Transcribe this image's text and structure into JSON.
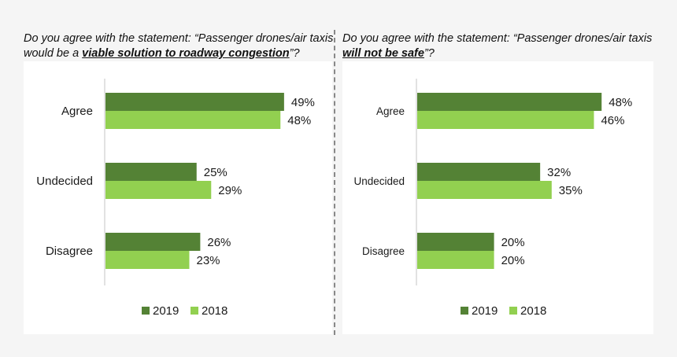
{
  "colors": {
    "series_2019": "#548235",
    "series_2018": "#92d050",
    "axis": "#d9d9d9",
    "text": "#1a1a1a"
  },
  "chart_data": [
    {
      "type": "bar",
      "orientation": "horizontal",
      "title_parts": [
        "Do you agree with the statement: “Passenger drones/air taxis would be a ",
        "viable solution to roadway congestion",
        "”?"
      ],
      "categories": [
        "Agree",
        "Undecided",
        "Disagree"
      ],
      "series": [
        {
          "name": "2019",
          "values": [
            49,
            25,
            26
          ],
          "labels": [
            "49%",
            "25%",
            "26%"
          ]
        },
        {
          "name": "2018",
          "values": [
            48,
            29,
            23
          ],
          "labels": [
            "48%",
            "29%",
            "23%"
          ]
        }
      ],
      "unit": "%",
      "xlim": [
        0,
        55
      ],
      "grid": false,
      "legend": "bottom"
    },
    {
      "type": "bar",
      "orientation": "horizontal",
      "title_parts": [
        "Do you agree with the statement: “Passenger drones/air taxis ",
        "will not be safe",
        "”?"
      ],
      "categories": [
        "Agree",
        "Undecided",
        "Disagree"
      ],
      "series": [
        {
          "name": "2019",
          "values": [
            48,
            32,
            20
          ],
          "labels": [
            "48%",
            "32%",
            "20%"
          ]
        },
        {
          "name": "2018",
          "values": [
            46,
            35,
            20
          ],
          "labels": [
            "46%",
            "35%",
            "20%"
          ]
        }
      ],
      "unit": "%",
      "xlim": [
        0,
        60
      ],
      "grid": false,
      "legend": "bottom"
    }
  ]
}
